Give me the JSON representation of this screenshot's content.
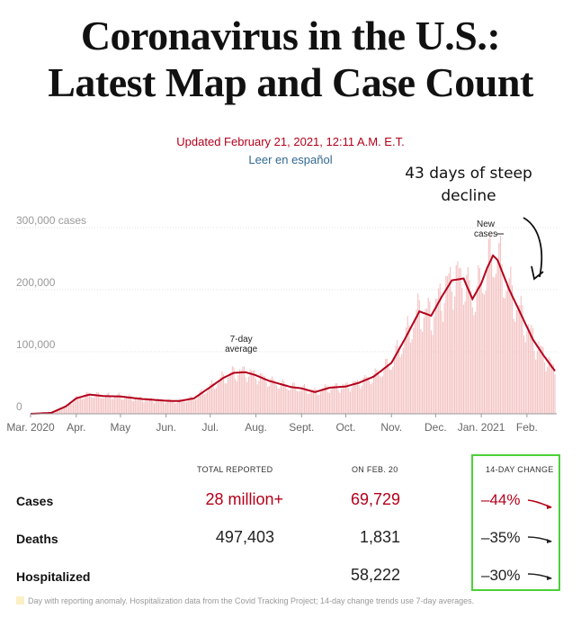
{
  "header": {
    "title_line1": "Coronavirus in the U.S.:",
    "title_line2": "Latest Map and Case Count",
    "updated": "Updated February 21, 2021, 12:11 A.M. E.T.",
    "leer_link": "Leer en español"
  },
  "annotation": {
    "line1": "43 days of steep",
    "line2": "decline"
  },
  "chart_data": {
    "type": "bar",
    "title": "",
    "xlabel": "",
    "ylabel": "cases",
    "ylim": [
      0,
      300000
    ],
    "y_ticks": [
      {
        "value": 0,
        "label": "0"
      },
      {
        "value": 100000,
        "label": "100,000"
      },
      {
        "value": 200000,
        "label": "200,000"
      },
      {
        "value": 300000,
        "label": "300,000 cases"
      }
    ],
    "x_range": [
      "2020-03-01",
      "2021-02-20"
    ],
    "x_ticks": [
      {
        "date": "2020-03-01",
        "label": "Mar. 2020"
      },
      {
        "date": "2020-04-01",
        "label": "Apr."
      },
      {
        "date": "2020-05-01",
        "label": "May"
      },
      {
        "date": "2020-06-01",
        "label": "Jun."
      },
      {
        "date": "2020-07-01",
        "label": "Jul."
      },
      {
        "date": "2020-08-01",
        "label": "Aug."
      },
      {
        "date": "2020-09-01",
        "label": "Sept."
      },
      {
        "date": "2020-10-01",
        "label": "Oct."
      },
      {
        "date": "2020-11-01",
        "label": "Nov."
      },
      {
        "date": "2020-12-01",
        "label": "Dec."
      },
      {
        "date": "2021-01-01",
        "label": "Jan. 2021"
      },
      {
        "date": "2021-02-01",
        "label": "Feb."
      }
    ],
    "series": [
      {
        "name": "New cases",
        "kind": "daily bars",
        "color": "#f4c3c3"
      },
      {
        "name": "7-day average",
        "kind": "line",
        "color": "#b3001b",
        "points": [
          [
            "2020-03-01",
            0
          ],
          [
            "2020-03-15",
            1500
          ],
          [
            "2020-03-25",
            12000
          ],
          [
            "2020-04-01",
            25000
          ],
          [
            "2020-04-10",
            31000
          ],
          [
            "2020-04-20",
            28500
          ],
          [
            "2020-05-01",
            28000
          ],
          [
            "2020-05-15",
            24000
          ],
          [
            "2020-06-01",
            21000
          ],
          [
            "2020-06-10",
            20500
          ],
          [
            "2020-06-20",
            25000
          ],
          [
            "2020-07-01",
            43000
          ],
          [
            "2020-07-10",
            58000
          ],
          [
            "2020-07-17",
            66000
          ],
          [
            "2020-07-25",
            67000
          ],
          [
            "2020-08-01",
            62000
          ],
          [
            "2020-08-10",
            53000
          ],
          [
            "2020-08-25",
            43000
          ],
          [
            "2020-09-01",
            41000
          ],
          [
            "2020-09-10",
            35000
          ],
          [
            "2020-09-20",
            42000
          ],
          [
            "2020-10-01",
            44000
          ],
          [
            "2020-10-10",
            50000
          ],
          [
            "2020-10-20",
            60000
          ],
          [
            "2020-11-01",
            82000
          ],
          [
            "2020-11-10",
            120000
          ],
          [
            "2020-11-20",
            165000
          ],
          [
            "2020-11-28",
            158000
          ],
          [
            "2020-12-05",
            188000
          ],
          [
            "2020-12-12",
            215000
          ],
          [
            "2020-12-20",
            218000
          ],
          [
            "2020-12-26",
            185000
          ],
          [
            "2021-01-01",
            210000
          ],
          [
            "2021-01-05",
            235000
          ],
          [
            "2021-01-09",
            255000
          ],
          [
            "2021-01-12",
            248000
          ],
          [
            "2021-01-20",
            200000
          ],
          [
            "2021-01-28",
            160000
          ],
          [
            "2021-02-05",
            120000
          ],
          [
            "2021-02-12",
            95000
          ],
          [
            "2021-02-20",
            69000
          ]
        ]
      }
    ],
    "annotations": [
      {
        "date": "2020-07-22",
        "line1": "7-day",
        "line2": "average"
      },
      {
        "date": "2021-01-04",
        "line1": "New",
        "line2": "cases"
      }
    ]
  },
  "table": {
    "headers": {
      "total": "TOTAL REPORTED",
      "on_date": "ON FEB. 20",
      "change": "14-DAY CHANGE"
    },
    "rows": [
      {
        "label": "Cases",
        "total": "28 million+",
        "on_date": "69,729",
        "change": "–44%",
        "trend": "down-steep",
        "color": "#b3001b"
      },
      {
        "label": "Deaths",
        "total": "497,403",
        "on_date": "1,831",
        "change": "–35%",
        "trend": "down",
        "color": "#222222"
      },
      {
        "label": "Hospitalized",
        "total": "",
        "on_date": "58,222",
        "change": "–30%",
        "trend": "down",
        "color": "#222222"
      }
    ]
  },
  "footnote": "Day with reporting anomaly. Hospitalization data from the Covid Tracking Project; 14-day change trends use 7-day averages."
}
